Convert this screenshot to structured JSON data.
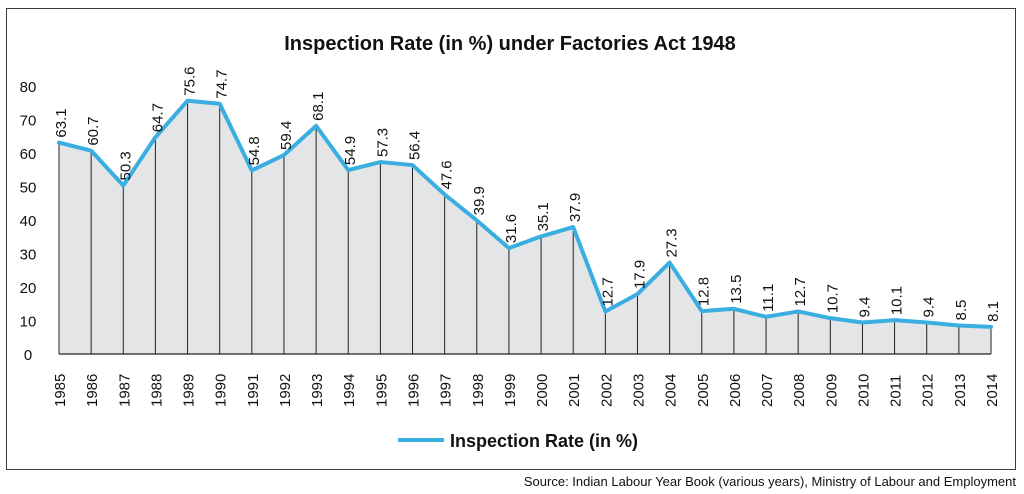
{
  "chart_data": {
    "type": "area",
    "title": "Inspection Rate (in %) under Factories Act 1948",
    "xlabel": "",
    "ylabel": "",
    "x": [
      "1985",
      "1986",
      "1987",
      "1988",
      "1989",
      "1990",
      "1991",
      "1992",
      "1993",
      "1994",
      "1995",
      "1996",
      "1997",
      "1998",
      "1999",
      "2000",
      "2001",
      "2002",
      "2003",
      "2004",
      "2005",
      "2006",
      "2007",
      "2008",
      "2009",
      "2010",
      "2011",
      "2012",
      "2013",
      "2014"
    ],
    "series": [
      {
        "name": "Inspection Rate (in %)",
        "values": [
          63.1,
          60.7,
          50.3,
          64.7,
          75.6,
          74.7,
          54.8,
          59.4,
          68.1,
          54.9,
          57.3,
          56.4,
          47.6,
          39.9,
          31.6,
          35.1,
          37.9,
          12.7,
          17.9,
          27.3,
          12.8,
          13.5,
          11.1,
          12.7,
          10.7,
          9.4,
          10.1,
          9.4,
          8.5,
          8.1
        ],
        "labels": [
          "63.1",
          "60.7",
          "50.3",
          "64.7",
          "75.6",
          "74.7",
          "54.8",
          "59.4",
          "68.1",
          "54.9",
          "57.3",
          "56.4",
          "47.6",
          "39.9",
          "31.6",
          "35.1",
          "37.9",
          "12.7",
          "17.9",
          "27.3",
          "12.8",
          "13.5",
          "11.1",
          "12.7",
          "10.7",
          "9.4",
          "10.1",
          "9.4",
          "8.5",
          "8.1"
        ]
      }
    ],
    "yticks": [
      "0",
      "10",
      "20",
      "30",
      "40",
      "50",
      "60",
      "70",
      "80"
    ],
    "ylim": [
      0,
      80
    ],
    "grid": false,
    "legend": "bottom-center",
    "colors": {
      "line": "#3aaee0",
      "fill": "#e4e5e6",
      "drop_lines": "#222222",
      "text": "#111111"
    }
  },
  "source": "Source: Indian Labour Year Book (various years), Ministry of Labour and Employment"
}
